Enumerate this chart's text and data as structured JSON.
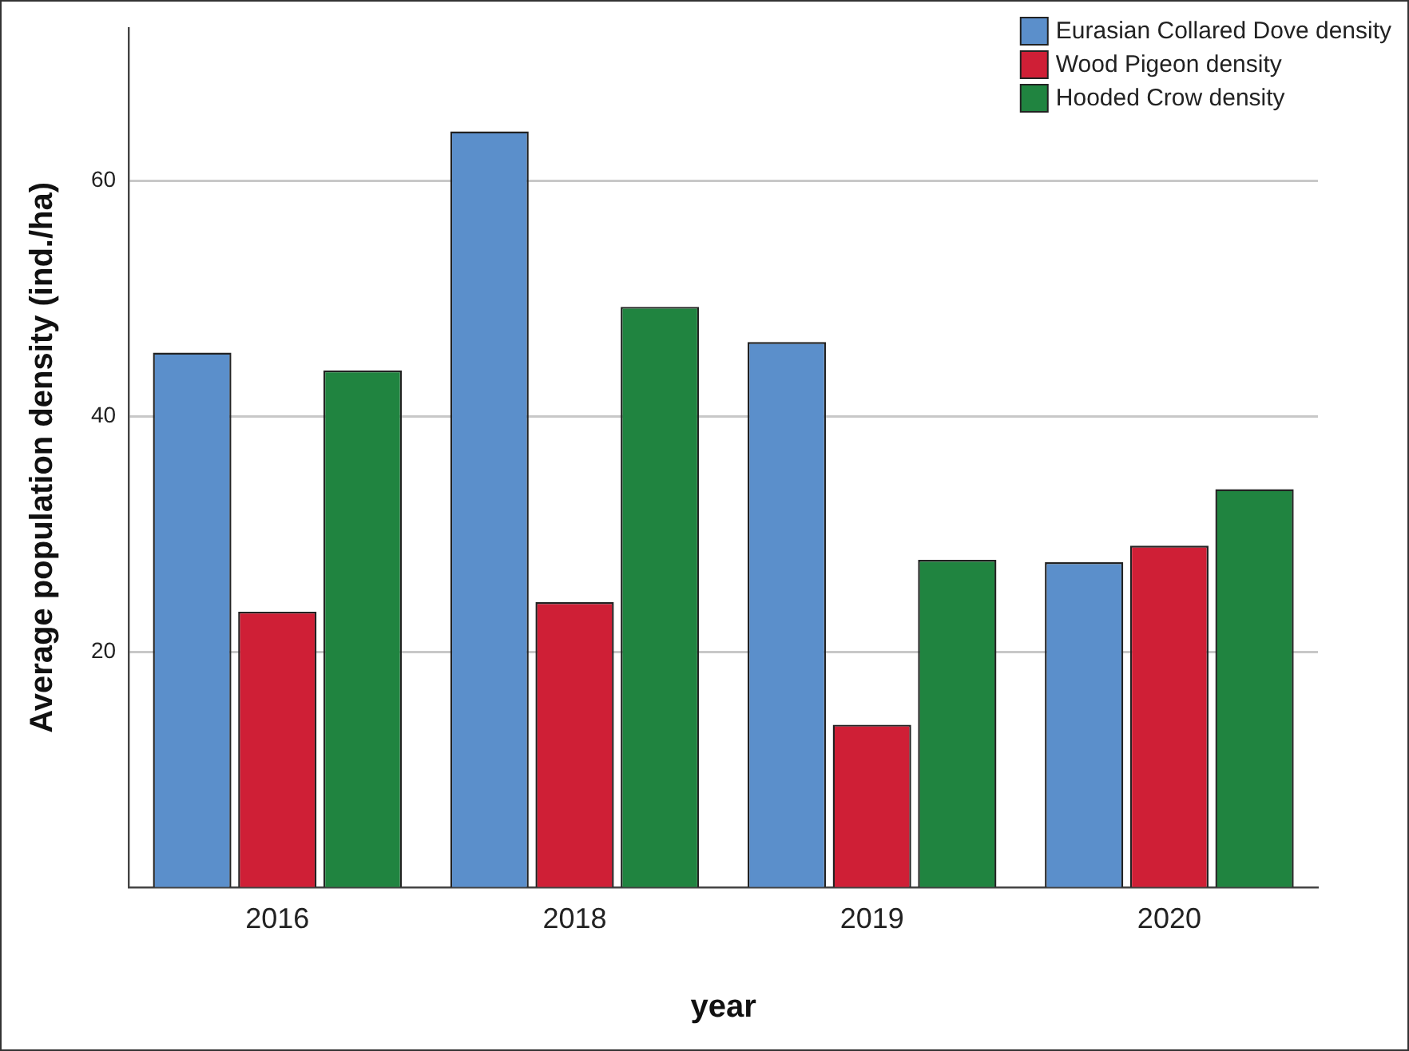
{
  "chart_data": {
    "type": "bar",
    "xlabel": "year",
    "ylabel": "Average population density (ind./ha)",
    "categories": [
      "2016",
      "2018",
      "2019",
      "2020"
    ],
    "series": [
      {
        "name": "Eurasian Collared Dove density",
        "color": "#5b8fcb",
        "values": [
          45.4,
          64.2,
          46.3,
          27.6
        ]
      },
      {
        "name": "Wood Pigeon density",
        "color": "#cf1f36",
        "values": [
          23.4,
          24.2,
          13.8,
          29.0
        ]
      },
      {
        "name": "Hooded Crow density",
        "color": "#208440",
        "values": [
          43.9,
          49.3,
          27.8,
          33.8
        ]
      }
    ],
    "ylim": [
      0,
      73
    ],
    "yticks": [
      20,
      40,
      60
    ],
    "grid": "y",
    "legend": "top right"
  }
}
